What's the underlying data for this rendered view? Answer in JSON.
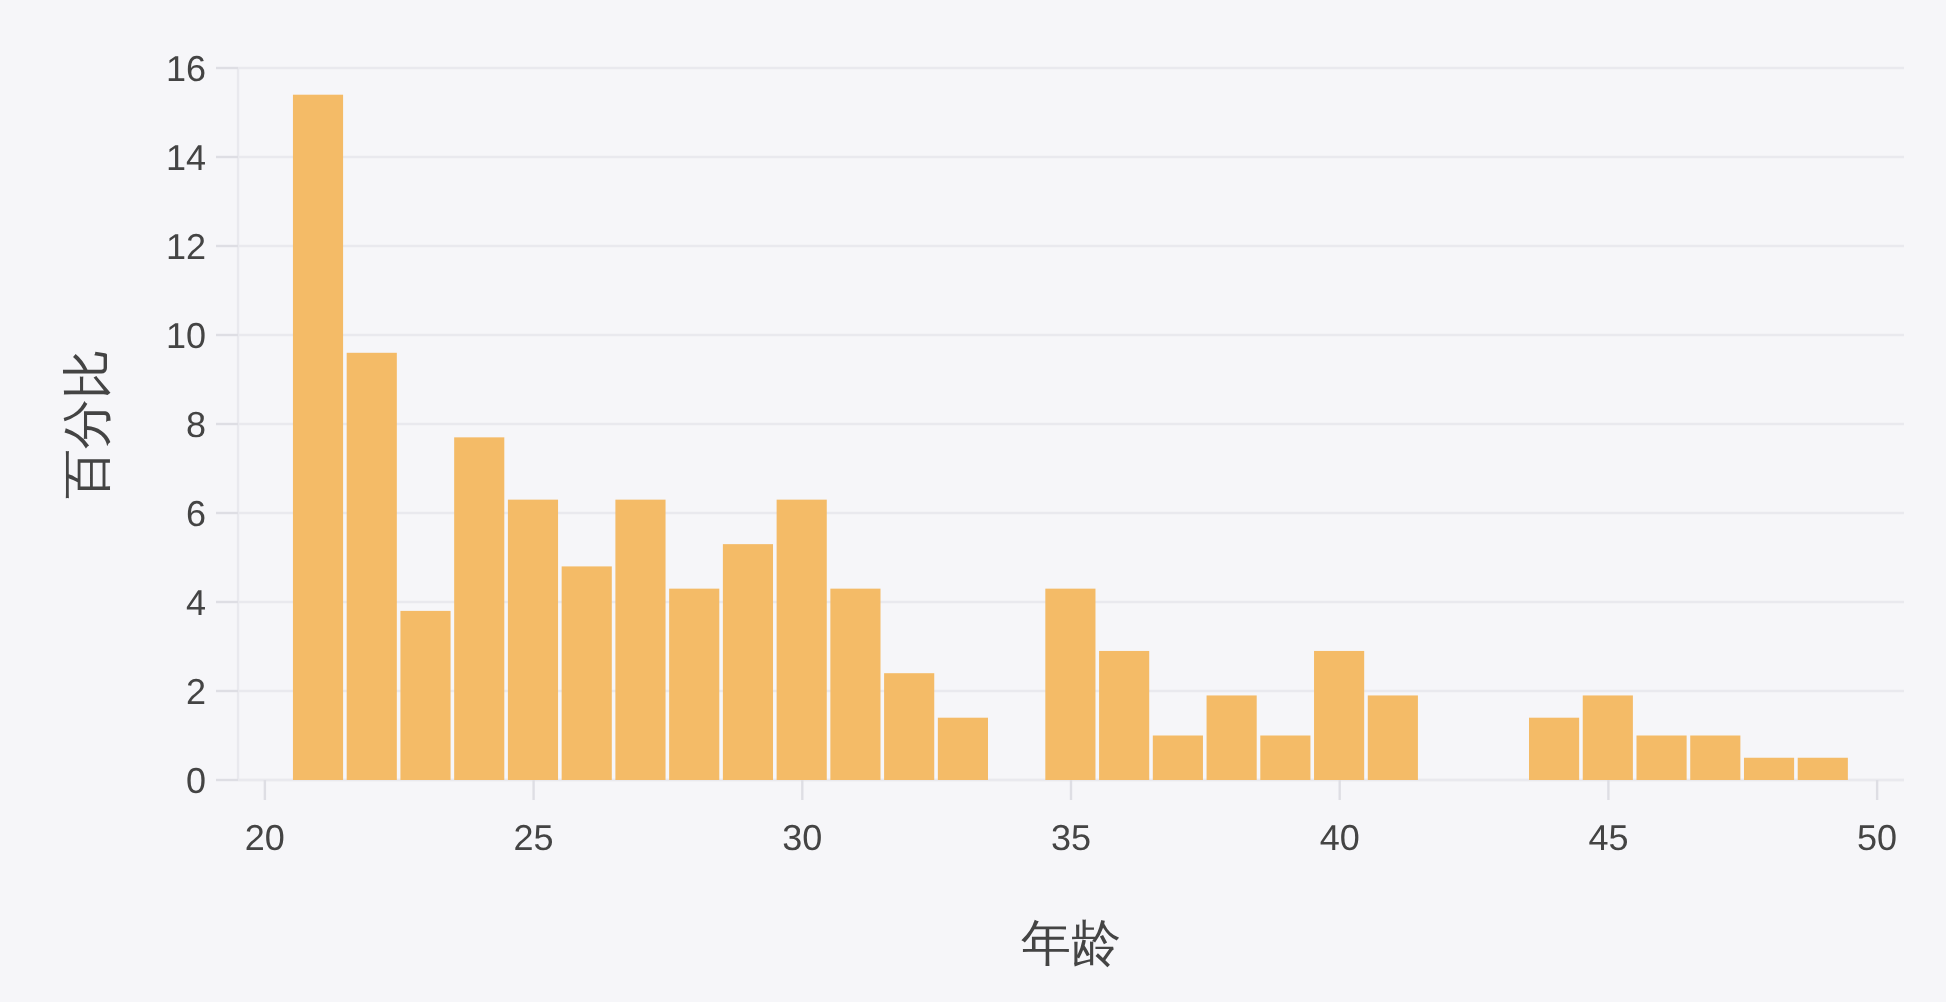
{
  "chart_data": {
    "type": "histogram",
    "xlabel": "年龄",
    "ylabel": "百分比",
    "bins": [
      20.5,
      21.5,
      22.5,
      23.5,
      24.5,
      25.5,
      26.5,
      27.5,
      28.5,
      29.5,
      30.5,
      31.5,
      32.5,
      33.5,
      34.5,
      35.5,
      36.5,
      37.5,
      38.5,
      39.5,
      40.5,
      41.5,
      42.5,
      43.5,
      44.5,
      45.5,
      46.5,
      47.5,
      48.5,
      49.5
    ],
    "values": [
      15.4,
      9.6,
      3.8,
      7.7,
      6.3,
      4.8,
      6.3,
      4.3,
      5.3,
      6.3,
      4.3,
      2.4,
      1.4,
      0,
      4.3,
      2.9,
      1.0,
      1.9,
      1.0,
      2.9,
      1.9,
      0,
      0,
      1.4,
      1.9,
      1.0,
      1.0,
      0.5,
      0.5
    ],
    "color": "#f4bb67",
    "xlim": [
      19.5,
      50.5
    ],
    "xticks": [
      20,
      25,
      30,
      35,
      40,
      45,
      50
    ],
    "ylim": [
      0,
      16
    ],
    "yticks": [
      0,
      2,
      4,
      6,
      8,
      10,
      12,
      14,
      16
    ],
    "grid": "y"
  }
}
